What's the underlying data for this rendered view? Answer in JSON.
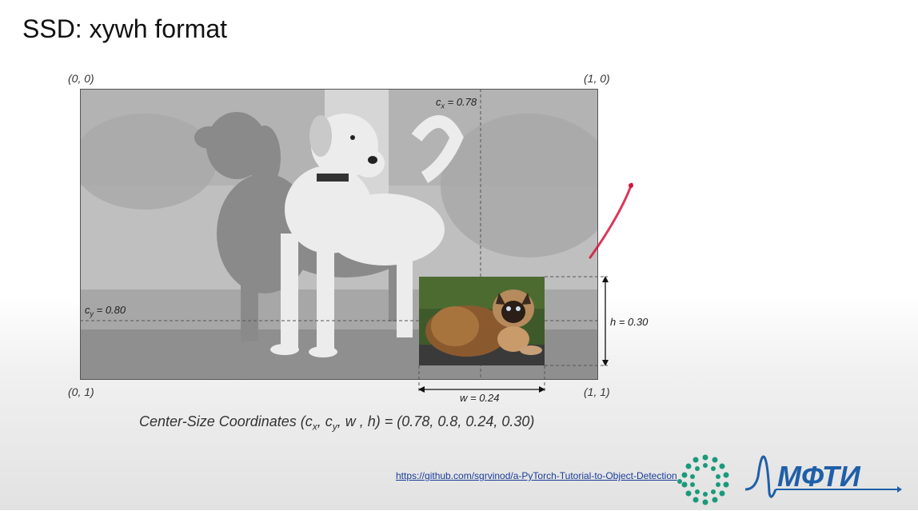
{
  "slide": {
    "title": "SSD: xywh format",
    "corners": {
      "top_left": "(0, 0)",
      "top_right": "(1, 0)",
      "bottom_left": "(0, 1)",
      "bottom_right": "(1, 1)"
    },
    "labels": {
      "cx_var": "c",
      "cx_sub": "x",
      "cx_value": " = 0.78",
      "cy_var": "c",
      "cy_sub": "y",
      "cy_value": " = 0.80",
      "h": "h = 0.30",
      "w": "w = 0.24"
    },
    "formula": {
      "prefix": "Center-Size Coordinates (c",
      "sub_x": "x",
      "mid": ", c",
      "sub_y": "y",
      "suffix": ", w , h) = (0.78, 0.8, 0.24, 0.30)"
    },
    "link": "https://github.com/sgrvinod/a-PyTorch-Tutorial-to-Object-Detection",
    "logo_text": "МФТИ"
  },
  "colors": {
    "accent_red": "#d4143c",
    "logo_blue": "#1f5fa8",
    "logo_green": "#1a9a7a"
  },
  "icons": [
    "dogs-photo",
    "cat-photo",
    "mipt-logo-mark"
  ]
}
